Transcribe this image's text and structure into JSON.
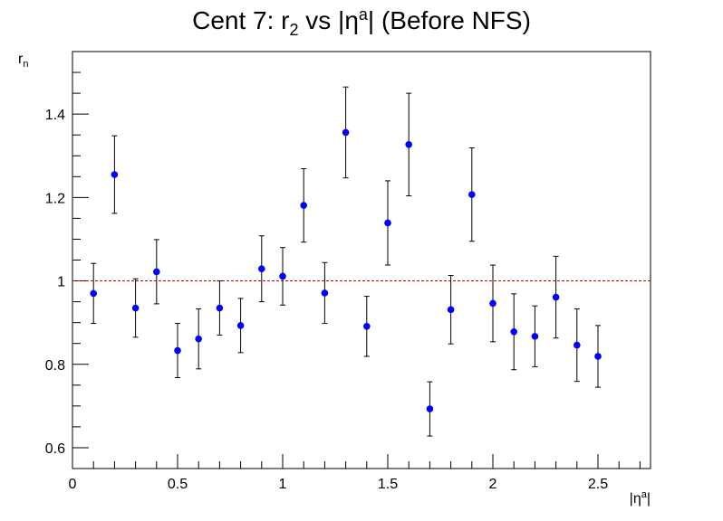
{
  "chart_data": {
    "type": "scatter",
    "title": "Cent 7: r_2 vs |η^a| (Before NFS)",
    "title_parts": {
      "prefix": "Cent 7: r",
      "sub": "2",
      "mid": " vs |η",
      "sup": "a",
      "suffix": "| (Before NFS)"
    },
    "xlabel": "|η^a|",
    "xlabel_parts": {
      "prefix": "|η",
      "sup": "a",
      "suffix": "|"
    },
    "ylabel": "r_n",
    "ylabel_parts": {
      "base": "r",
      "sub": "n"
    },
    "xlim": [
      0,
      2.75
    ],
    "ylim": [
      0.55,
      1.55
    ],
    "x_ticks": [
      0,
      0.5,
      1,
      1.5,
      2,
      2.5
    ],
    "x_tick_labels": [
      "0",
      "0.5",
      "1",
      "1.5",
      "2",
      "2.5"
    ],
    "y_ticks": [
      0.6,
      0.8,
      1.0,
      1.2,
      1.4
    ],
    "y_tick_labels": [
      "0.6",
      "0.8",
      "1",
      "1.2",
      "1.4"
    ],
    "reference_line": {
      "y": 1.0,
      "color": "#cc0000",
      "style": "dashed"
    },
    "grid": false,
    "marker_color": "#0000ff",
    "points": [
      {
        "x": 0.1,
        "y": 0.97,
        "err": 0.072
      },
      {
        "x": 0.2,
        "y": 1.255,
        "err": 0.093
      },
      {
        "x": 0.3,
        "y": 0.935,
        "err": 0.07
      },
      {
        "x": 0.4,
        "y": 1.022,
        "err": 0.077
      },
      {
        "x": 0.5,
        "y": 0.833,
        "err": 0.065
      },
      {
        "x": 0.6,
        "y": 0.861,
        "err": 0.072
      },
      {
        "x": 0.7,
        "y": 0.935,
        "err": 0.065
      },
      {
        "x": 0.8,
        "y": 0.893,
        "err": 0.065
      },
      {
        "x": 0.9,
        "y": 1.029,
        "err": 0.079
      },
      {
        "x": 1.0,
        "y": 1.011,
        "err": 0.069
      },
      {
        "x": 1.1,
        "y": 1.181,
        "err": 0.088
      },
      {
        "x": 1.2,
        "y": 0.971,
        "err": 0.073
      },
      {
        "x": 1.3,
        "y": 1.356,
        "err": 0.109
      },
      {
        "x": 1.4,
        "y": 0.891,
        "err": 0.072
      },
      {
        "x": 1.5,
        "y": 1.139,
        "err": 0.101
      },
      {
        "x": 1.6,
        "y": 1.327,
        "err": 0.123
      },
      {
        "x": 1.7,
        "y": 0.693,
        "err": 0.065
      },
      {
        "x": 1.8,
        "y": 0.931,
        "err": 0.082
      },
      {
        "x": 1.9,
        "y": 1.207,
        "err": 0.112
      },
      {
        "x": 2.0,
        "y": 0.946,
        "err": 0.092
      },
      {
        "x": 2.1,
        "y": 0.878,
        "err": 0.091
      },
      {
        "x": 2.2,
        "y": 0.867,
        "err": 0.073
      },
      {
        "x": 2.3,
        "y": 0.961,
        "err": 0.098
      },
      {
        "x": 2.4,
        "y": 0.846,
        "err": 0.087
      },
      {
        "x": 2.5,
        "y": 0.819,
        "err": 0.074
      }
    ]
  }
}
